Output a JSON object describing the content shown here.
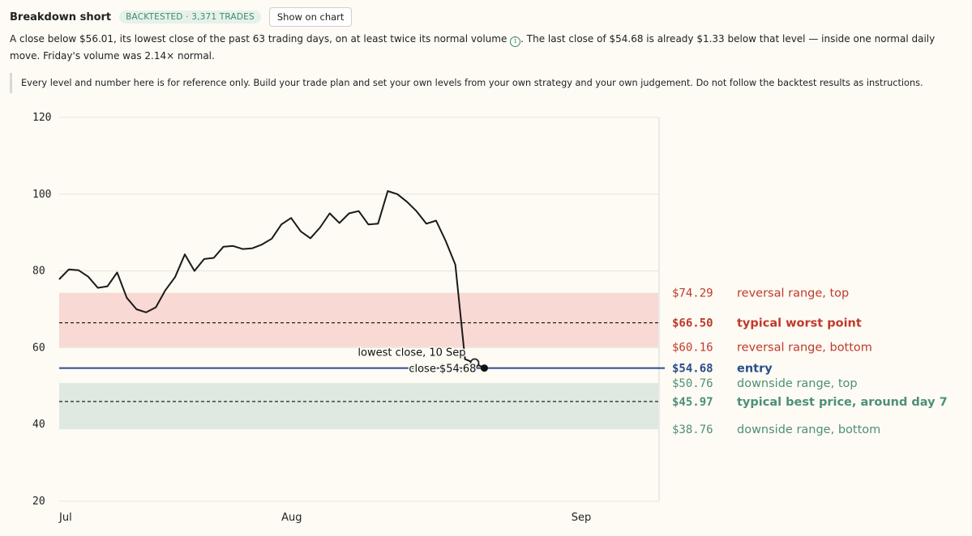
{
  "header": {
    "title": "Breakdown short",
    "badge": "BACKTESTED · 3,371 TRADES",
    "button_label": "Show on chart"
  },
  "description": {
    "part1": "A close below $56.01, its lowest close of the past 63 trading days, on at least twice its normal volume",
    "info_icon": "info-icon",
    "part2": ". The last close of $54.68 is already $1.33 below that level — inside one normal daily move. Friday's volume was 2.14× normal."
  },
  "note": "Every level and number here is for reference only. Build your trade plan and set your own levels from your own strategy and your own judgement. Do not follow the backtest results as instructions.",
  "colors": {
    "red": "#c0392b",
    "red_band": "#f9d9d4",
    "green": "#4e8f78",
    "green_band": "#dde9e1",
    "blue": "#2a4e8c",
    "line": "#1a1a1a"
  },
  "chart_data": {
    "type": "line",
    "ylim": [
      20,
      120
    ],
    "yticks": [
      20,
      40,
      60,
      80,
      100,
      120
    ],
    "xlim": [
      0,
      62
    ],
    "xticks": [
      {
        "x": 0,
        "label": "Jul"
      },
      {
        "x": 23,
        "label": "Aug"
      },
      {
        "x": 53,
        "label": "Sep"
      }
    ],
    "series": [
      {
        "values": [
          77.8,
          80.4,
          80.2,
          78.5,
          75.6,
          76.0,
          79.6,
          73.0,
          70.0,
          69.2,
          70.5,
          75.0,
          78.4,
          84.3,
          80.0,
          83.1,
          83.4,
          86.3,
          86.5,
          85.7,
          85.9,
          86.9,
          88.4,
          92.1,
          93.8,
          90.3,
          88.5,
          91.3,
          95.0,
          92.5,
          95.0,
          95.6,
          92.1,
          92.3,
          100.8,
          100.0,
          98.0,
          95.5,
          92.3,
          93.1,
          87.8,
          81.6,
          57.0,
          56.0,
          54.68
        ]
      }
    ],
    "bands": [
      {
        "from": 60.16,
        "to": 74.29,
        "kind": "reversal"
      },
      {
        "from": 38.76,
        "to": 50.76,
        "kind": "downside"
      }
    ],
    "levels": [
      {
        "value": 74.29,
        "price": "$74.29",
        "label": "reversal range, top",
        "kind": "red",
        "bold": false
      },
      {
        "value": 66.5,
        "price": "$66.50",
        "label": "typical worst point",
        "kind": "red",
        "bold": true,
        "dashed": true
      },
      {
        "value": 60.16,
        "price": "$60.16",
        "label": "reversal range, bottom",
        "kind": "red",
        "bold": false
      },
      {
        "value": 54.68,
        "price": "$54.68",
        "label": "entry",
        "kind": "blue",
        "bold": true,
        "solid": true
      },
      {
        "value": 50.76,
        "price": "$50.76",
        "label": "downside range, top",
        "kind": "green",
        "bold": false
      },
      {
        "value": 45.97,
        "price": "$45.97",
        "label": "typical best price, around day 7",
        "kind": "green",
        "bold": true,
        "dashed": true
      },
      {
        "value": 38.76,
        "price": "$38.76",
        "label": "downside range, bottom",
        "kind": "green",
        "bold": false
      }
    ],
    "annotations": [
      {
        "text": "lowest close, 10 Sep",
        "x": 43,
        "y": 56.0,
        "marker": "open-circle"
      },
      {
        "text": "close $54.68",
        "x": 44,
        "y": 54.68,
        "marker": "filled-circle"
      }
    ]
  }
}
